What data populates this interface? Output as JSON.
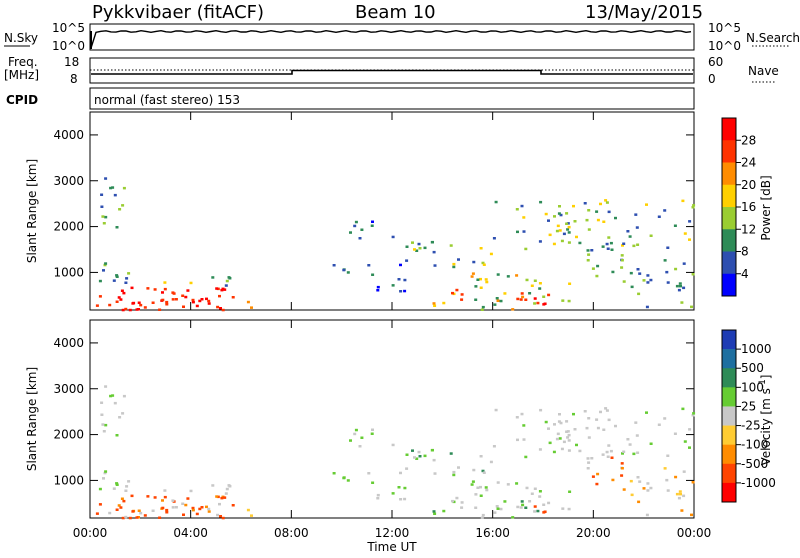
{
  "header": {
    "radar": "Pykkvibaer (fitACF)",
    "beam": "Beam 10",
    "date": "13/May/2015"
  },
  "panel_sky": {
    "left_label": "N.Sky",
    "right_label": "N.Search",
    "left_ticks": [
      "10^5",
      "10^0"
    ],
    "right_ticks": [
      "10^5",
      "10^0"
    ]
  },
  "panel_freq": {
    "left_label_1": "Freq.",
    "left_label_2": "[MHz]",
    "right_label": "Nave",
    "left_ticks": [
      "18",
      "8"
    ],
    "right_ticks": [
      "60",
      "0"
    ]
  },
  "cpid": {
    "label": "CPID",
    "text": "normal (fast stereo) 153"
  },
  "chart_data": [
    {
      "type": "heatmap",
      "quantity": "power",
      "ylabel": "Slant Range [km]",
      "ylim": [
        180,
        4500
      ],
      "yticks": [
        "1000",
        "2000",
        "3000",
        "4000"
      ],
      "colorbar_label": "Power [dB]",
      "colorbar_ticks": [
        "4",
        "8",
        "12",
        "16",
        "20",
        "24",
        "28"
      ],
      "colorbar_colors": [
        "#0000ff",
        "#2e4fb0",
        "#2e8b57",
        "#9acd32",
        "#ffd000",
        "#ff8c00",
        "#ff3300",
        "#ff0000"
      ]
    },
    {
      "type": "heatmap",
      "quantity": "velocity",
      "ylabel": "Slant Range [km]",
      "ylim": [
        180,
        4500
      ],
      "yticks": [
        "1000",
        "2000",
        "3000",
        "4000"
      ],
      "colorbar_label": "Velocity [m s^-1]",
      "colorbar_ticks": [
        "1000",
        "500",
        "100",
        "25",
        "-25",
        "-100",
        "-500",
        "-1000"
      ],
      "colorbar_colors": [
        "#1e3cb4",
        "#1e6fa0",
        "#2e8b57",
        "#66cc33",
        "#c8c8c8",
        "#ffcc33",
        "#ff8c00",
        "#ff4400",
        "#ff0000"
      ]
    }
  ],
  "xaxis": {
    "label": "Time UT",
    "ticks": [
      "00:00",
      "04:00",
      "08:00",
      "12:00",
      "16:00",
      "20:00",
      "00:00"
    ]
  }
}
